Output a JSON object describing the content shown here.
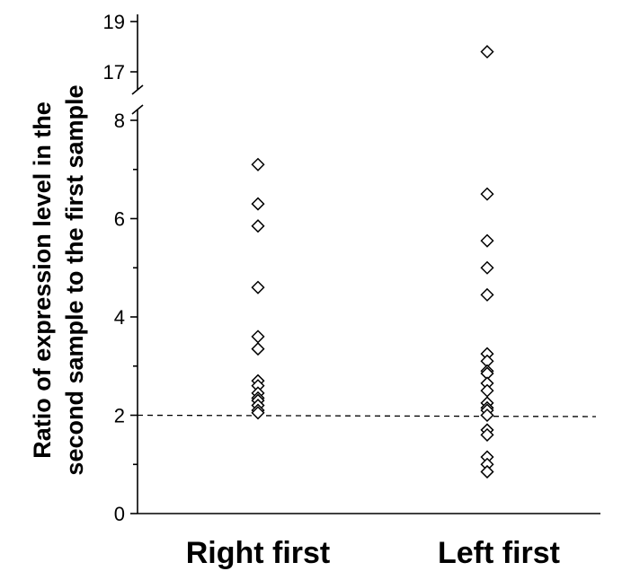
{
  "chart_data": {
    "type": "scatter",
    "ylabel_lines": [
      "Ratio of expression level in the",
      "second sample to the first sample"
    ],
    "categories": [
      "Right first",
      "Left first"
    ],
    "y_ticks_lower": [
      "0",
      "2",
      "4",
      "6",
      "8"
    ],
    "y_ticks_upper": [
      "17",
      "19"
    ],
    "ylim_lower": [
      0,
      8
    ],
    "ylim_upper": [
      16,
      19
    ],
    "axis_break": "between 8 and 16",
    "threshold": 2,
    "threshold_style": "dashed",
    "marker": "open-diamond",
    "grid": false,
    "series": [
      {
        "category": "Right first",
        "values": [
          7.1,
          6.3,
          5.85,
          4.6,
          3.6,
          3.35,
          2.7,
          2.6,
          2.45,
          2.35,
          2.3,
          2.2,
          2.1,
          2.05
        ]
      },
      {
        "category": "Left first",
        "values": [
          17.8,
          6.5,
          5.55,
          5.0,
          4.45,
          3.25,
          3.1,
          2.9,
          2.85,
          2.65,
          2.5,
          2.25,
          2.15,
          2.1,
          2.0,
          1.7,
          1.6,
          1.15,
          1.0,
          0.85
        ]
      }
    ]
  }
}
